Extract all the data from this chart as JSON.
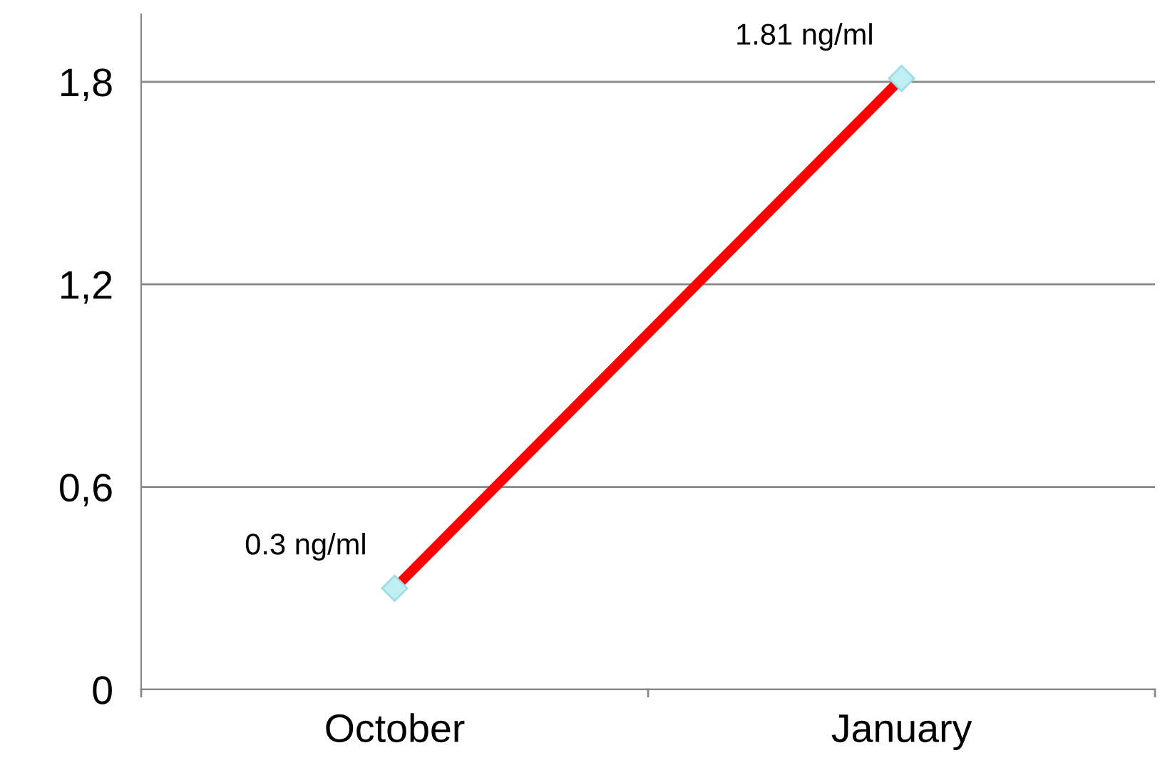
{
  "chart_data": {
    "type": "line",
    "categories": [
      "October",
      "January"
    ],
    "series": [
      {
        "color": "#ff0000",
        "values": [
          0.3,
          1.81
        ],
        "value_labels": [
          "0.3 ng/ml",
          "1.81 ng/ml"
        ]
      }
    ],
    "ylim": [
      0,
      2.0
    ],
    "yticks": [
      {
        "value": 0,
        "label": "0"
      },
      {
        "value": 0.6,
        "label": "0,6"
      },
      {
        "value": 1.2,
        "label": "1,2"
      },
      {
        "value": 1.8,
        "label": "1,8"
      }
    ],
    "grid": "y",
    "marker": "diamond",
    "line_style": "solid",
    "legend": false
  }
}
